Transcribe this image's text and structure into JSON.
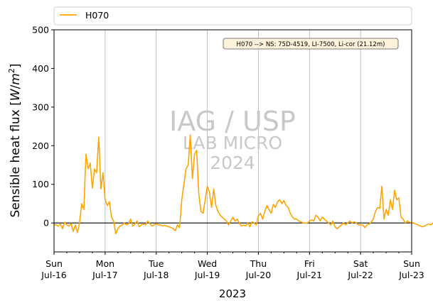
{
  "chart_data": {
    "type": "line",
    "xlabel": "2023",
    "ylabel_main": "Sensible heat flux [",
    "ylabel_unit_w": "W",
    "ylabel_unit_sep": "/",
    "ylabel_unit_m": "m",
    "ylabel_unit_exp": "2",
    "ylabel_close": "]",
    "ylim": [
      -75,
      500
    ],
    "yticks": [
      0,
      100,
      200,
      300,
      400,
      500
    ],
    "xlim": [
      "2023-07-16 00:00",
      "2023-07-23 00:00"
    ],
    "xticks": [
      {
        "day": "Sun",
        "date": "Jul-16"
      },
      {
        "day": "Mon",
        "date": "Jul-17"
      },
      {
        "day": "Tue",
        "date": "Jul-18"
      },
      {
        "day": "Wed",
        "date": "Jul-19"
      },
      {
        "day": "Thu",
        "date": "Jul-20"
      },
      {
        "day": "Fri",
        "date": "Jul-21"
      },
      {
        "day": "Sat",
        "date": "Jul-22"
      },
      {
        "day": "Sun",
        "date": "Jul-23"
      }
    ],
    "grid": "vertical",
    "zero_line": true,
    "legend_position": "top",
    "annotation": "H070 --> NS: 75D-4519, LI-7500, Li-cor (21.12m)",
    "watermark": [
      "IAG / USP",
      "LAB MICRO",
      "2024"
    ],
    "series": [
      {
        "name": "H070",
        "color": "#FFA500",
        "hourly_start": "2023-07-16 00:00",
        "values": [
          -5,
          -5,
          -8,
          -3,
          -15,
          2,
          -5,
          -8,
          -2,
          -22,
          -5,
          -25,
          2,
          50,
          35,
          178,
          140,
          155,
          90,
          140,
          130,
          222,
          88,
          130,
          60,
          45,
          55,
          15,
          5,
          -28,
          -15,
          -8,
          -5,
          0,
          -5,
          -2,
          10,
          -8,
          -2,
          5,
          -10,
          -5,
          -3,
          -5,
          5,
          -2,
          -8,
          -5,
          -2,
          -5,
          -5,
          -8,
          -6,
          -8,
          -10,
          -12,
          -15,
          -20,
          -5,
          -12,
          60,
          100,
          140,
          150,
          228,
          115,
          178,
          188,
          75,
          30,
          25,
          60,
          95,
          80,
          40,
          88,
          45,
          30,
          20,
          15,
          10,
          5,
          -5,
          5,
          15,
          5,
          10,
          0,
          -8,
          -5,
          -8,
          0,
          -10,
          3,
          0,
          -5,
          18,
          25,
          10,
          30,
          45,
          35,
          25,
          48,
          40,
          55,
          60,
          50,
          58,
          45,
          40,
          25,
          15,
          10,
          10,
          5,
          3,
          0,
          0,
          0,
          5,
          8,
          5,
          20,
          15,
          5,
          15,
          10,
          5,
          0,
          -5,
          5,
          -10,
          -15,
          -10,
          -5,
          0,
          -5,
          0,
          5,
          0,
          3,
          0,
          -5,
          -5,
          -5,
          -12,
          -5,
          -3,
          2,
          10,
          30,
          40,
          38,
          95,
          10,
          35,
          20,
          60,
          35,
          85,
          60,
          65,
          15,
          10,
          0,
          5,
          2,
          0,
          0,
          -3,
          -5,
          -8,
          -10,
          -8,
          -5,
          -3,
          -5,
          0,
          -12,
          -10,
          0,
          10,
          45,
          60,
          65,
          150,
          110,
          160,
          240,
          300,
          270,
          210,
          120,
          65,
          30,
          15,
          10,
          5,
          -5,
          2,
          -8,
          -5,
          -10,
          -8,
          -5,
          -12,
          -15,
          -20,
          -15,
          -25,
          -18,
          -20,
          -15,
          -10,
          -18,
          -10,
          5,
          30,
          65,
          125,
          110,
          155,
          130,
          330,
          200,
          160,
          95,
          130,
          60,
          45,
          30,
          20,
          15,
          12,
          10,
          5,
          0,
          5,
          10,
          8,
          5,
          -5,
          -8,
          -5,
          -10,
          -8,
          -12,
          -10,
          -5,
          0,
          -15,
          -12,
          -8,
          -5,
          0,
          5,
          -10,
          -5,
          5,
          10,
          25,
          50,
          80,
          110,
          160,
          185,
          265,
          215,
          180,
          170,
          145,
          180,
          160,
          110,
          55,
          10,
          0,
          -5,
          -10,
          -8,
          -12,
          -5,
          -8,
          -10,
          0,
          -5,
          3,
          0
        ]
      }
    ]
  }
}
